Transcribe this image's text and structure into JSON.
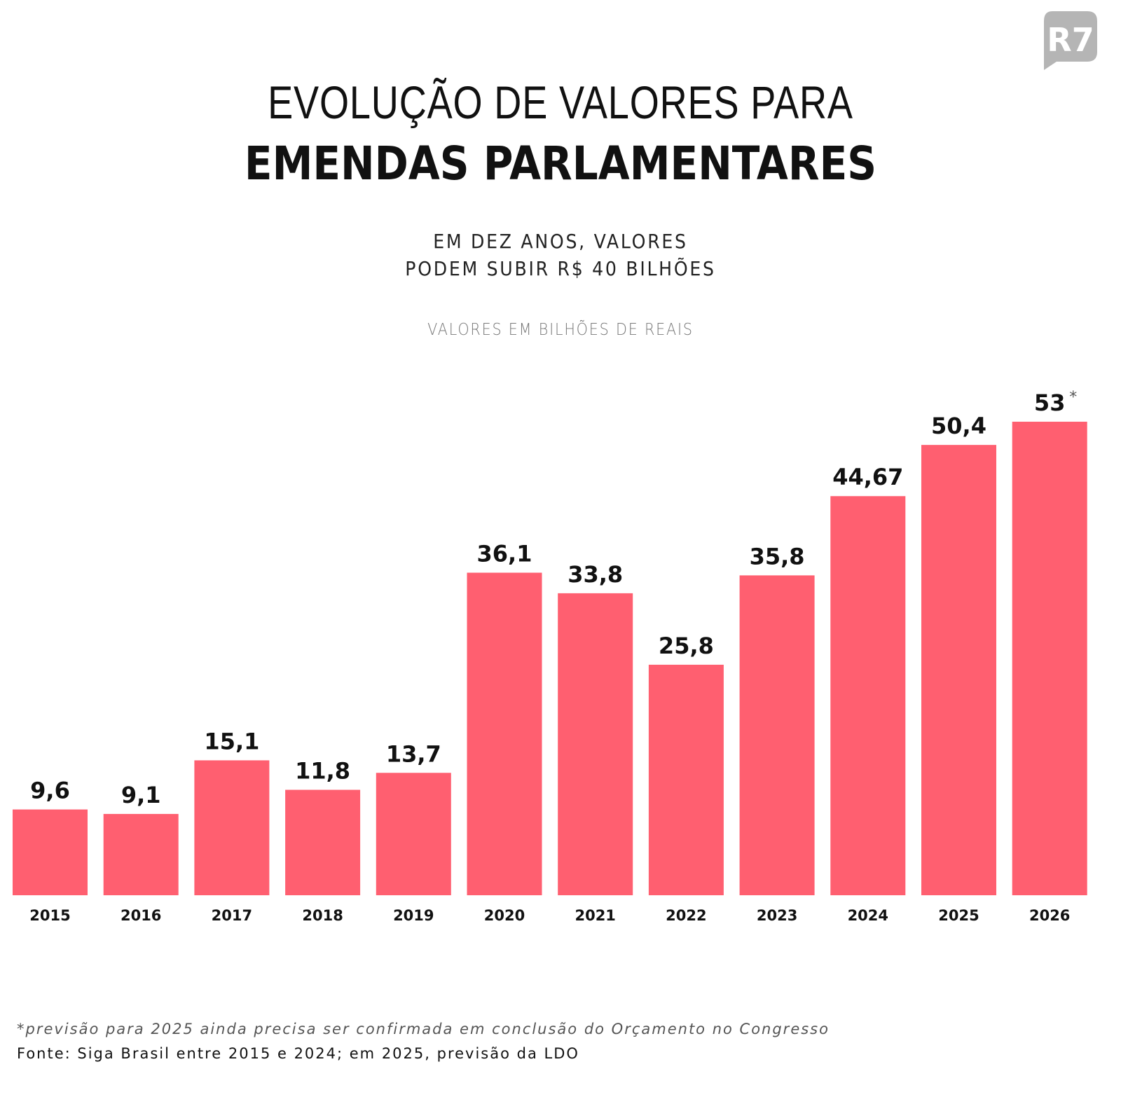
{
  "logo_text": "R7",
  "title_line1": "EVOLUÇÃO DE VALORES PARA",
  "title_line2": "EMENDAS PARLAMENTARES",
  "subtitle_line1": "EM DEZ ANOS, VALORES",
  "subtitle_line2": "PODEM SUBIR R$ 40 BILHÕES",
  "unit_label": "VALORES EM BILHÕES DE REAIS",
  "footnote": "*previsão para 2025 ainda precisa ser confirmada em conclusão do Orçamento no Congresso",
  "source": "Fonte: Siga Brasil entre 2015 e 2024; em 2025, previsão da LDO",
  "chart_data": {
    "type": "bar",
    "title": "EVOLUÇÃO DE VALORES PARA EMENDAS PARLAMENTARES",
    "ylabel": "VALORES EM BILHÕES DE REAIS",
    "categories": [
      "2015",
      "2016",
      "2017",
      "2018",
      "2019",
      "2020",
      "2021",
      "2022",
      "2023",
      "2024",
      "2025",
      "2026"
    ],
    "values": [
      9.6,
      9.1,
      15.1,
      11.8,
      13.7,
      36.1,
      33.8,
      25.8,
      35.8,
      44.67,
      50.4,
      53
    ],
    "value_labels": [
      "9,6",
      "9,1",
      "15,1",
      "11,8",
      "13,7",
      "36,1",
      "33,8",
      "25,8",
      "35,8",
      "44,67",
      "50,4",
      "53"
    ],
    "annotations": [
      {
        "category": "2026",
        "text": "*"
      }
    ],
    "ylim": [
      0,
      53
    ],
    "grid": false,
    "bar_color": "#ff5f70"
  }
}
